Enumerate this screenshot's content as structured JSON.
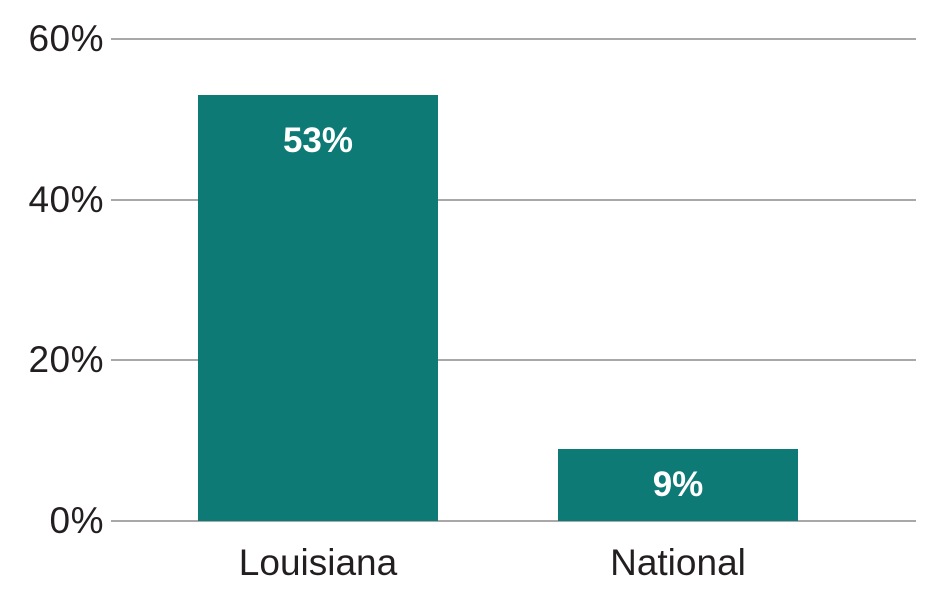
{
  "chart_data": {
    "type": "bar",
    "categories": [
      "Louisiana",
      "National"
    ],
    "values": [
      53,
      9
    ],
    "value_labels": [
      "53%",
      "9%"
    ],
    "title": "",
    "xlabel": "",
    "ylabel": "",
    "ylim": [
      0,
      60
    ],
    "y_ticks": [
      0,
      20,
      40,
      60
    ],
    "y_tick_labels": [
      "0%",
      "20%",
      "40%",
      "60%"
    ],
    "grid": true,
    "legend": "none",
    "colors": {
      "bar_fill": "#0E7A75",
      "bar_value_text": "#FFFFFF",
      "gridline": "#A8A8A8",
      "axis_text": "#231F20",
      "background": "#FFFFFF"
    }
  }
}
